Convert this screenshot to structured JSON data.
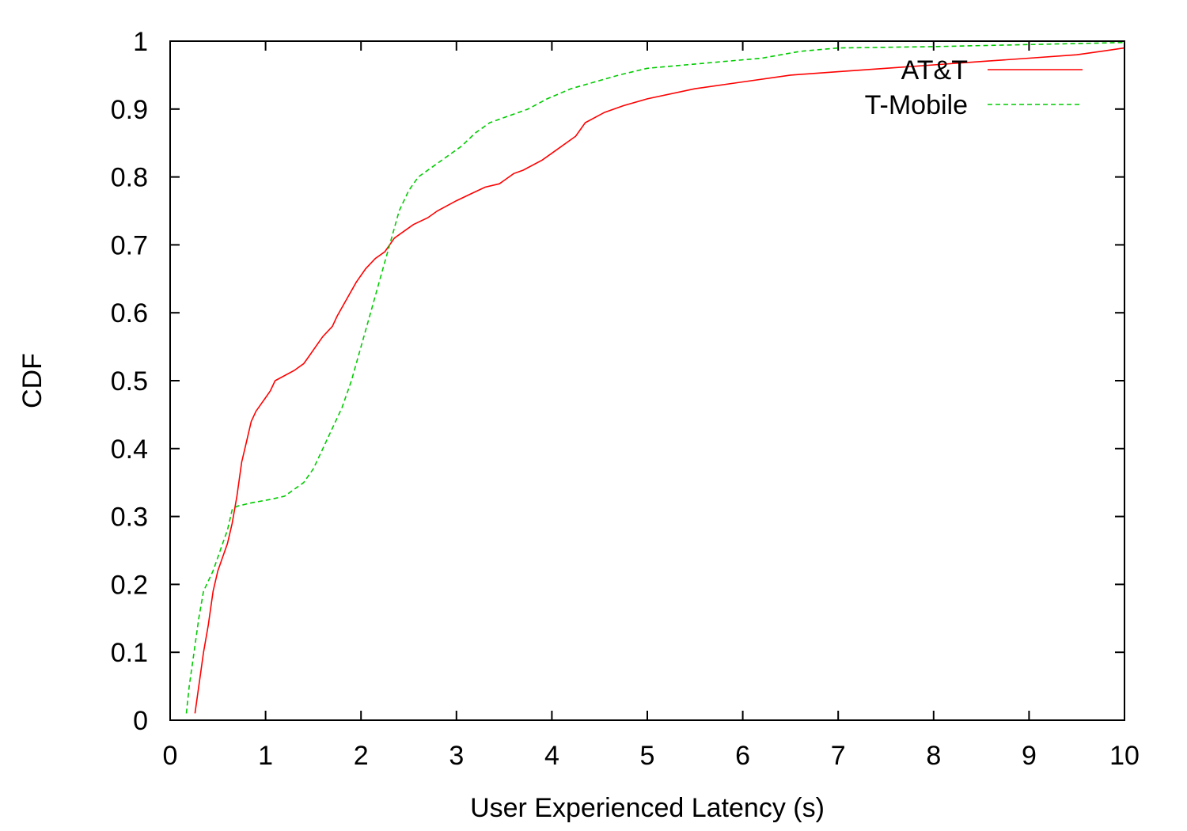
{
  "chart_data": {
    "type": "line",
    "title": "",
    "xlabel": "User Experienced Latency (s)",
    "ylabel": "CDF",
    "xlim": [
      0,
      10
    ],
    "ylim": [
      0,
      1
    ],
    "xticks": [
      "0",
      "1",
      "2",
      "3",
      "4",
      "5",
      "6",
      "7",
      "8",
      "9",
      "10"
    ],
    "yticks": [
      "0",
      "0.1",
      "0.2",
      "0.3",
      "0.4",
      "0.5",
      "0.6",
      "0.7",
      "0.8",
      "0.9",
      "1"
    ],
    "grid": false,
    "legend_position": "top-right",
    "series": [
      {
        "name": "AT&T",
        "color": "#ff0000",
        "dash": "solid",
        "points": [
          [
            0.26,
            0.01
          ],
          [
            0.3,
            0.05
          ],
          [
            0.35,
            0.1
          ],
          [
            0.4,
            0.14
          ],
          [
            0.45,
            0.19
          ],
          [
            0.5,
            0.22
          ],
          [
            0.55,
            0.24
          ],
          [
            0.6,
            0.26
          ],
          [
            0.65,
            0.29
          ],
          [
            0.7,
            0.33
          ],
          [
            0.75,
            0.38
          ],
          [
            0.8,
            0.41
          ],
          [
            0.85,
            0.44
          ],
          [
            0.9,
            0.455
          ],
          [
            1.0,
            0.475
          ],
          [
            1.05,
            0.485
          ],
          [
            1.1,
            0.5
          ],
          [
            1.3,
            0.515
          ],
          [
            1.4,
            0.525
          ],
          [
            1.45,
            0.535
          ],
          [
            1.55,
            0.555
          ],
          [
            1.6,
            0.565
          ],
          [
            1.7,
            0.58
          ],
          [
            1.75,
            0.595
          ],
          [
            1.85,
            0.62
          ],
          [
            1.95,
            0.645
          ],
          [
            2.05,
            0.665
          ],
          [
            2.15,
            0.68
          ],
          [
            2.25,
            0.69
          ],
          [
            2.35,
            0.71
          ],
          [
            2.45,
            0.72
          ],
          [
            2.55,
            0.73
          ],
          [
            2.7,
            0.74
          ],
          [
            2.8,
            0.75
          ],
          [
            3.0,
            0.765
          ],
          [
            3.15,
            0.775
          ],
          [
            3.3,
            0.785
          ],
          [
            3.45,
            0.79
          ],
          [
            3.6,
            0.805
          ],
          [
            3.7,
            0.81
          ],
          [
            3.9,
            0.825
          ],
          [
            4.05,
            0.84
          ],
          [
            4.25,
            0.86
          ],
          [
            4.35,
            0.88
          ],
          [
            4.55,
            0.895
          ],
          [
            4.75,
            0.905
          ],
          [
            5.0,
            0.915
          ],
          [
            5.5,
            0.93
          ],
          [
            6.0,
            0.94
          ],
          [
            6.5,
            0.95
          ],
          [
            7.0,
            0.955
          ],
          [
            7.5,
            0.96
          ],
          [
            8.0,
            0.965
          ],
          [
            8.5,
            0.97
          ],
          [
            9.0,
            0.975
          ],
          [
            9.5,
            0.98
          ],
          [
            10.0,
            0.99
          ],
          [
            10.2,
            1.0
          ]
        ]
      },
      {
        "name": "T-Mobile",
        "color": "#00cc00",
        "dash": "dashed",
        "points": [
          [
            0.17,
            0.01
          ],
          [
            0.2,
            0.05
          ],
          [
            0.25,
            0.1
          ],
          [
            0.3,
            0.15
          ],
          [
            0.35,
            0.19
          ],
          [
            0.45,
            0.22
          ],
          [
            0.5,
            0.24
          ],
          [
            0.55,
            0.26
          ],
          [
            0.6,
            0.28
          ],
          [
            0.65,
            0.31
          ],
          [
            0.7,
            0.315
          ],
          [
            0.85,
            0.32
          ],
          [
            1.05,
            0.325
          ],
          [
            1.2,
            0.33
          ],
          [
            1.3,
            0.34
          ],
          [
            1.4,
            0.35
          ],
          [
            1.5,
            0.37
          ],
          [
            1.6,
            0.4
          ],
          [
            1.7,
            0.43
          ],
          [
            1.8,
            0.46
          ],
          [
            1.9,
            0.5
          ],
          [
            2.0,
            0.55
          ],
          [
            2.1,
            0.6
          ],
          [
            2.2,
            0.65
          ],
          [
            2.3,
            0.7
          ],
          [
            2.4,
            0.75
          ],
          [
            2.5,
            0.78
          ],
          [
            2.6,
            0.8
          ],
          [
            2.75,
            0.815
          ],
          [
            2.9,
            0.83
          ],
          [
            3.05,
            0.845
          ],
          [
            3.2,
            0.865
          ],
          [
            3.35,
            0.88
          ],
          [
            3.55,
            0.89
          ],
          [
            3.75,
            0.9
          ],
          [
            3.95,
            0.915
          ],
          [
            4.2,
            0.93
          ],
          [
            4.45,
            0.94
          ],
          [
            4.7,
            0.95
          ],
          [
            5.0,
            0.96
          ],
          [
            5.4,
            0.965
          ],
          [
            5.8,
            0.97
          ],
          [
            6.2,
            0.975
          ],
          [
            6.6,
            0.985
          ],
          [
            7.0,
            0.99
          ],
          [
            8.0,
            0.992
          ],
          [
            9.0,
            0.995
          ],
          [
            10.0,
            0.998
          ],
          [
            10.2,
            1.0
          ]
        ]
      }
    ]
  }
}
